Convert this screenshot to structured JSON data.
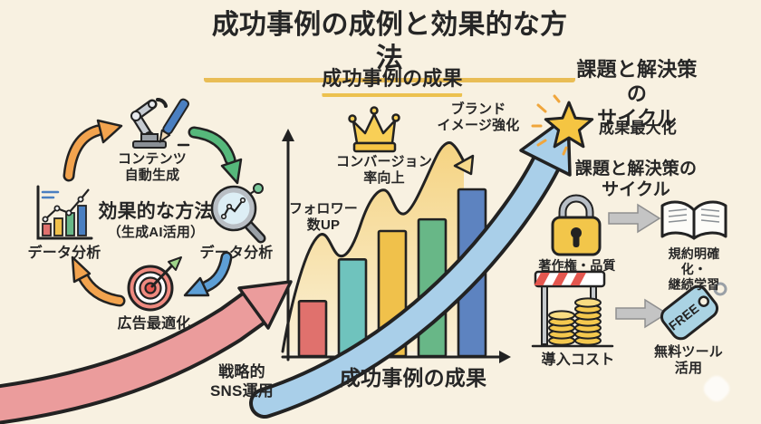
{
  "title": "成功事例の成例と効果的な方法",
  "left_cycle": {
    "content_generation": "コンテンツ\n自動生成",
    "heading": "効果的な方法",
    "subheading": "（生成AI活用）",
    "data_analysis_left": "データ分析",
    "data_analysis_right": "データ分析",
    "ad_optimization": "広告最適化"
  },
  "center_chart": {
    "heading": "成功事例の成果",
    "annotation_followers": "フォロワー\n数UP",
    "annotation_conversion": "コンバージョン\n率向上",
    "annotation_brand": "ブランド\nイメージ強化",
    "strategy": "戦略的\nSNS運用",
    "xaxis_label": "成功事例の成果"
  },
  "right_panel": {
    "heading_top": "課題と解決策の\nサイクル",
    "star_caption": "成果最大化",
    "heading_cycle": "課題と解決策の\nサイクル",
    "copyright_quality": "著作権・品質",
    "rules_learning": "規約明確化・\n継続学習",
    "introduction_cost": "導入コスト",
    "free_tools": "無料ツール\n活用",
    "free_tag": "FREE"
  },
  "chart_data": {
    "type": "bar",
    "title": "成功事例の成果",
    "xlabel": "成功事例の成果",
    "ylabel": "",
    "categories": [
      "",
      "",
      "",
      "",
      ""
    ],
    "values": [
      33,
      58,
      75,
      82,
      100
    ],
    "ylim": [
      0,
      100
    ],
    "bar_colors": [
      "#e0716d",
      "#6fc3bd",
      "#f0c14b",
      "#68b787",
      "#5d83c0"
    ],
    "annotations": [
      "フォロワー数UP",
      "コンバージョン率向上",
      "ブランドイメージ強化"
    ],
    "overlays": [
      "yellow growth area curve with down arrow",
      "large blue rising arrow",
      "large red strategy arrow"
    ],
    "legend": false,
    "grid": false
  },
  "colors": {
    "background": "#f8f1e1",
    "ink": "#262626",
    "underline": "#e9bd55",
    "area_yellow": "#f6d98a",
    "arrow_blue": "#a9cfe9",
    "arrow_red": "#eb9c9c",
    "arrow_orange": "#f2a34e",
    "arrow_green": "#56b87b",
    "arrow_small_blue": "#5d9fd6",
    "gray_arrow": "#c4c4c4",
    "gold": "#f5c542"
  }
}
